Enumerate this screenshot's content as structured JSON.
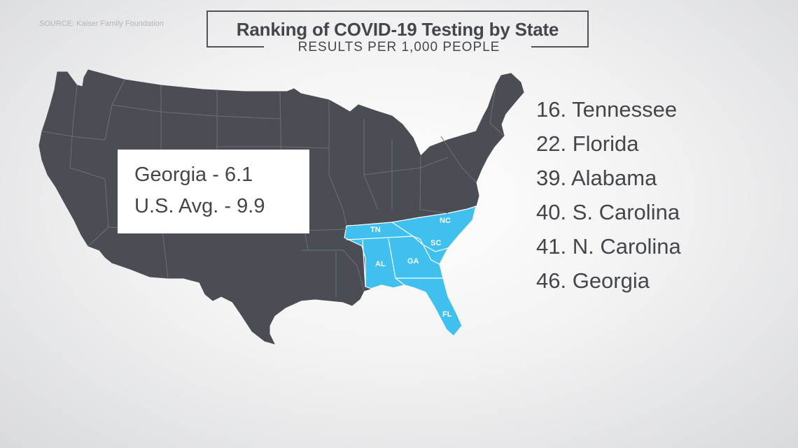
{
  "source": "SOURCE: Kaiser Family Foundation",
  "title": "Ranking of COVID-19 Testing by State",
  "subtitle": "RESULTS PER 1,000 PEOPLE",
  "callout": {
    "state_line": "Georgia - 6.1",
    "avg_line": "U.S. Avg. - 9.9"
  },
  "rankings": [
    {
      "text": "16. Tennessee"
    },
    {
      "text": "22. Florida"
    },
    {
      "text": "39. Alabama"
    },
    {
      "text": "40. S. Carolina"
    },
    {
      "text": "41. N. Carolina"
    },
    {
      "text": "46. Georgia"
    }
  ],
  "highlighted_states": [
    "TN",
    "NC",
    "SC",
    "GA",
    "AL",
    "FL"
  ],
  "colors": {
    "map_base": "#4a4e54",
    "highlight": "#3fc0ee",
    "border": "#ffffff",
    "text": "#43474c"
  }
}
